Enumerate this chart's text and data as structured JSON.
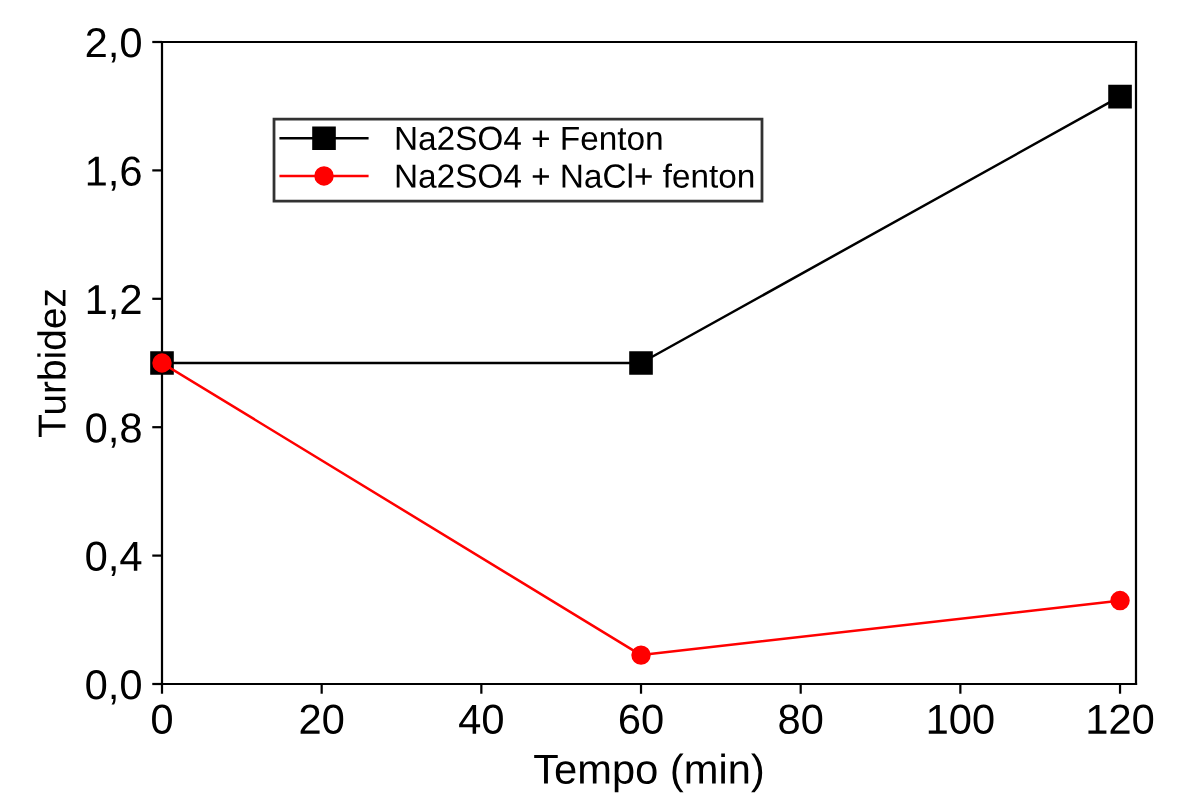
{
  "chart_data": {
    "type": "line",
    "xlabel": "Tempo (min)",
    "ylabel": "Turbidez",
    "x": [
      0,
      60,
      120
    ],
    "series": [
      {
        "name": "Na2SO4 + Fenton",
        "color": "#000000",
        "marker": "square",
        "values": [
          1.0,
          1.0,
          1.83
        ]
      },
      {
        "name": "Na2SO4 + NaCl+ fenton",
        "color": "#ff0000",
        "marker": "circle",
        "values": [
          1.0,
          0.09,
          0.26
        ]
      }
    ],
    "xlim": [
      0,
      122
    ],
    "xticks": [
      0,
      20,
      40,
      60,
      80,
      100,
      120
    ],
    "ylim": [
      0,
      2.0
    ],
    "yticks": [
      {
        "value": 0,
        "label": "0,0"
      },
      {
        "value": 0.4,
        "label": "0,4"
      },
      {
        "value": 0.8,
        "label": "0,8"
      },
      {
        "value": 1.2,
        "label": "1,2"
      },
      {
        "value": 1.6,
        "label": "1,6"
      },
      {
        "value": 2.0,
        "label": "2,0"
      }
    ],
    "grid": false,
    "legend": "top left",
    "line_style": "solid"
  }
}
